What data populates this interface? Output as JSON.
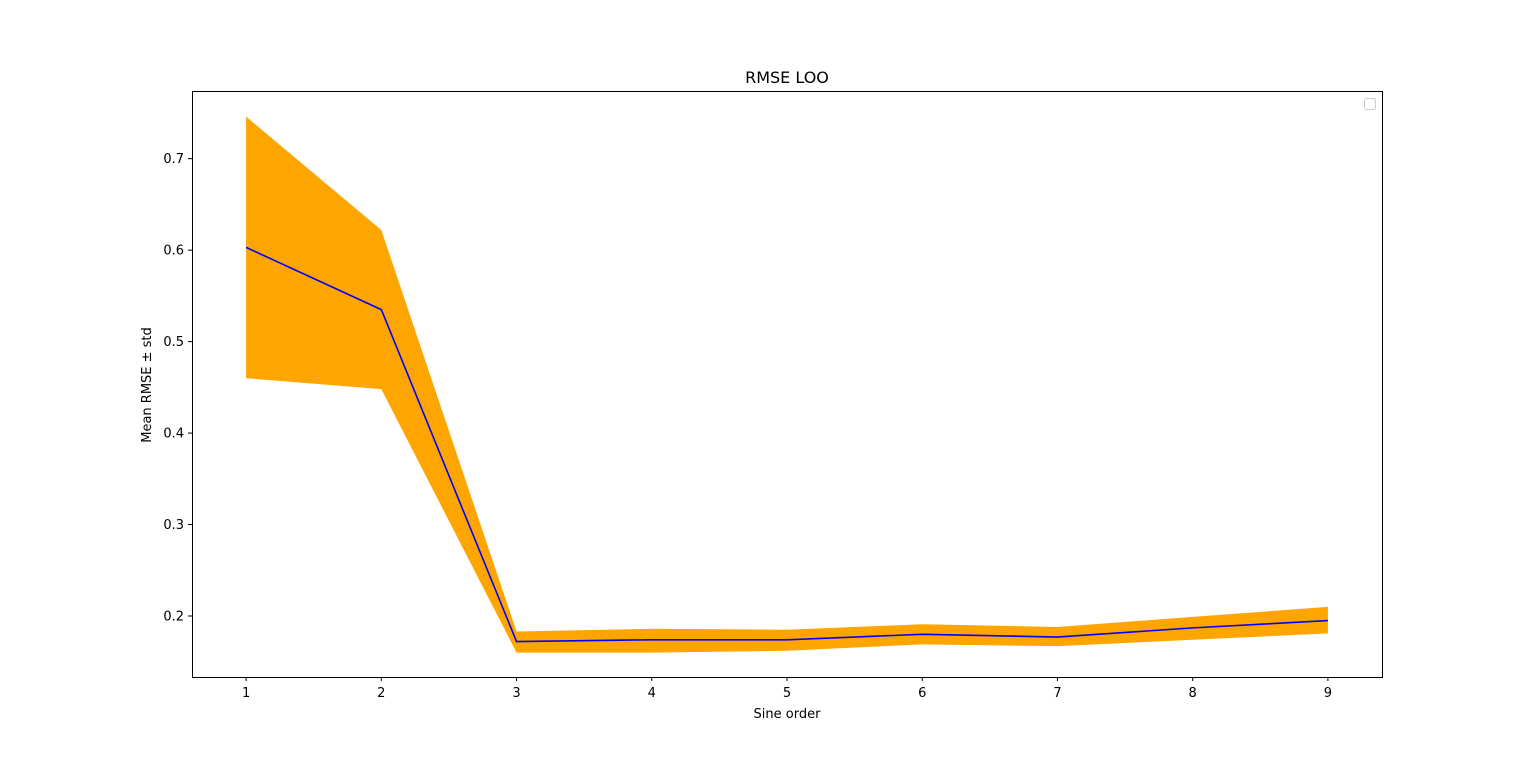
{
  "chart_data": {
    "type": "line",
    "title": "RMSE LOO",
    "xlabel": "Sine order",
    "ylabel": "Mean RMSE ± std",
    "x": [
      1,
      2,
      3,
      4,
      5,
      6,
      7,
      8,
      9
    ],
    "series": [
      {
        "values": [
          0.603,
          0.535,
          0.172,
          0.174,
          0.174,
          0.18,
          0.177,
          0.187,
          0.195
        ],
        "color": "#0000ff"
      }
    ],
    "band": {
      "upper": [
        0.746,
        0.622,
        0.183,
        0.186,
        0.185,
        0.191,
        0.188,
        0.199,
        0.21
      ],
      "lower": [
        0.46,
        0.448,
        0.16,
        0.16,
        0.162,
        0.169,
        0.167,
        0.174,
        0.181
      ],
      "color": "#ffa500"
    },
    "xticks": [
      1,
      2,
      3,
      4,
      5,
      6,
      7,
      8,
      9
    ],
    "yticks": [
      0.2,
      0.3,
      0.4,
      0.5,
      0.6,
      0.7
    ],
    "xlim": [
      0.6,
      9.4
    ],
    "ylim": [
      0.1333,
      0.7729
    ],
    "grid": false,
    "legend": {
      "placement": "upper-right",
      "entries": []
    }
  }
}
